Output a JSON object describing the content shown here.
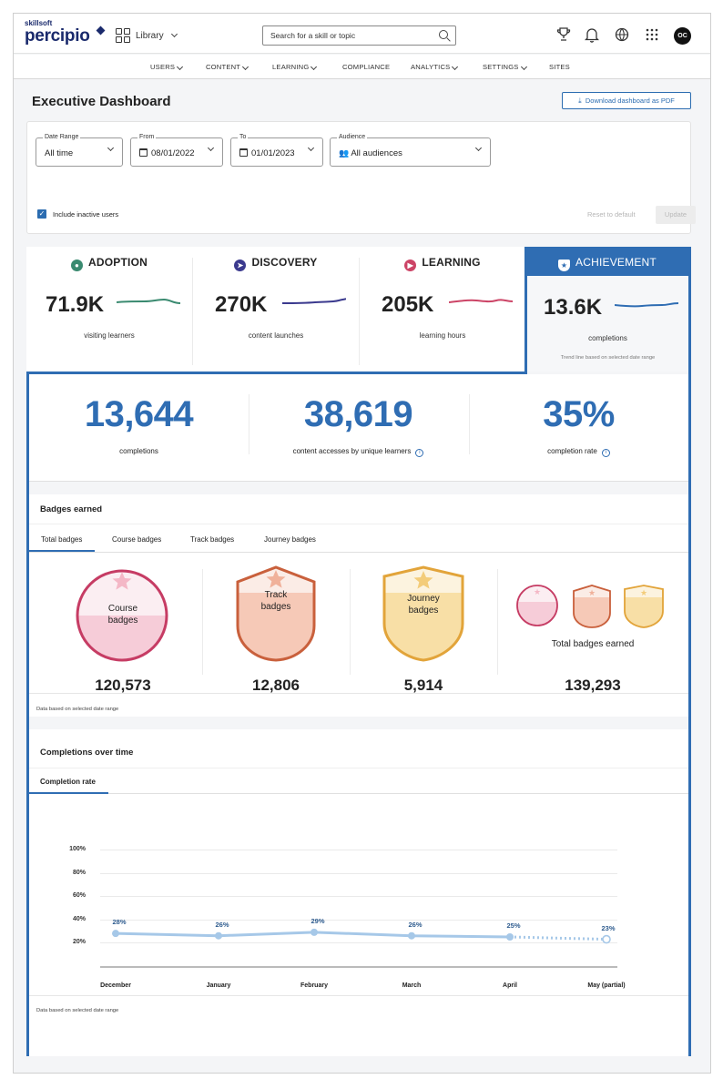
{
  "topbar": {
    "logo_small": "skillsoft",
    "logo_main": "percipio",
    "library": "Library",
    "search_placeholder": "Search for a skill or topic",
    "avatar": "OC"
  },
  "nav": [
    "USERS",
    "CONTENT",
    "LEARNING",
    "COMPLIANCE",
    "ANALYTICS",
    "SETTINGS",
    "SITES"
  ],
  "page": {
    "title": "Executive Dashboard",
    "download": "Download dashboard as PDF"
  },
  "filters": {
    "date_range": {
      "label": "Date Range",
      "value": "All time"
    },
    "from": {
      "label": "From",
      "value": "08/01/2022"
    },
    "to": {
      "label": "To",
      "value": "01/01/2023"
    },
    "audience": {
      "label": "Audience",
      "value": "All audiences"
    },
    "inactive": "Include inactive users",
    "reset": "Reset to default",
    "update": "Update"
  },
  "kpis": [
    {
      "name": "ADOPTION",
      "value": "71.9K",
      "sub": "visiting learners",
      "color": "#3a8a70"
    },
    {
      "name": "DISCOVERY",
      "value": "270K",
      "sub": "content launches",
      "color": "#3b3a8e"
    },
    {
      "name": "LEARNING",
      "value": "205K",
      "sub": "learning hours",
      "color": "#cc4466"
    },
    {
      "name": "ACHIEVEMENT",
      "value": "13.6K",
      "sub": "completions",
      "note": "Trend line based on selected date range",
      "color": "#2f6db3"
    }
  ],
  "stats": [
    {
      "value": "13,644",
      "label": "completions"
    },
    {
      "value": "38,619",
      "label": "content accesses by unique learners"
    },
    {
      "value": "35%",
      "label": "completion rate"
    }
  ],
  "badges": {
    "title": "Badges earned",
    "tabs": [
      "Total badges",
      "Course badges",
      "Track badges",
      "Journey badges"
    ],
    "items": [
      {
        "line1": "Course",
        "line2": "badges",
        "value": "120,573"
      },
      {
        "line1": "Track",
        "line2": "badges",
        "value": "12,806"
      },
      {
        "line1": "Journey",
        "line2": "badges",
        "value": "5,914"
      }
    ],
    "total_label": "Total badges earned",
    "total_value": "139,293",
    "footnote": "Data based on selected date range"
  },
  "completions": {
    "title": "Completions over time",
    "tab": "Completion rate",
    "footnote": "Data based on selected date range"
  },
  "chart_data": {
    "type": "line",
    "categories": [
      "December",
      "January",
      "February",
      "March",
      "April",
      "May (partial)"
    ],
    "values": [
      28,
      26,
      29,
      26,
      25,
      23
    ],
    "data_labels": [
      "28%",
      "26%",
      "29%",
      "26%",
      "25%",
      "23%"
    ],
    "yticks": [
      "100%",
      "80%",
      "60%",
      "40%",
      "20%"
    ],
    "ylim": [
      0,
      100
    ],
    "partial_last": true,
    "color": "#a6c8e8"
  }
}
